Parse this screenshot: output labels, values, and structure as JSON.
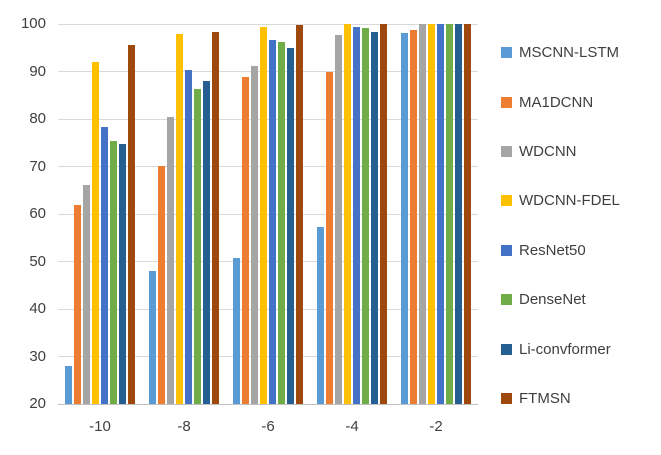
{
  "chart_data": {
    "type": "bar",
    "title": "",
    "categories": [
      "-10",
      "-8",
      "-6",
      "-4",
      "-2"
    ],
    "series": [
      {
        "name": "MSCNN-LSTM",
        "color": "#5B9BD5",
        "values": [
          28.0,
          47.9,
          50.7,
          57.2,
          98.1
        ]
      },
      {
        "name": "MA1DCNN",
        "color": "#ED7D31",
        "values": [
          62.0,
          70.2,
          88.8,
          90.0,
          98.8
        ]
      },
      {
        "name": "WDCNN",
        "color": "#A5A5A5",
        "values": [
          66.2,
          80.5,
          91.1,
          97.7,
          100.0
        ]
      },
      {
        "name": "WDCNN-FDEL",
        "color": "#FFC000",
        "values": [
          91.9,
          97.8,
          99.4,
          99.9,
          100.0
        ]
      },
      {
        "name": "ResNet50",
        "color": "#4472C4",
        "values": [
          78.4,
          90.3,
          96.7,
          99.4,
          100.0
        ]
      },
      {
        "name": "DenseNet",
        "color": "#70AD47",
        "values": [
          75.3,
          86.4,
          96.2,
          99.2,
          100.0
        ]
      },
      {
        "name": "Li-convformer",
        "color": "#255E91",
        "values": [
          74.8,
          87.9,
          94.9,
          98.3,
          100.0
        ]
      },
      {
        "name": "FTMSN",
        "color": "#9E480E",
        "values": [
          95.5,
          98.4,
          99.8,
          100.0,
          100.0
        ]
      }
    ],
    "y_axis": {
      "min": 20,
      "max": 100,
      "step": 10,
      "tick_labels": [
        "20",
        "30",
        "40",
        "50",
        "60",
        "70",
        "80",
        "90",
        "100"
      ]
    },
    "x_axis": {
      "tick_labels": [
        "-10",
        "-8",
        "-6",
        "-4",
        "-2"
      ]
    },
    "legend_position": "right",
    "grid": true,
    "gridline_color": "#D9D9D9",
    "axis_line_color": "#BFBFBF",
    "text_color": "#3F3F3F"
  }
}
